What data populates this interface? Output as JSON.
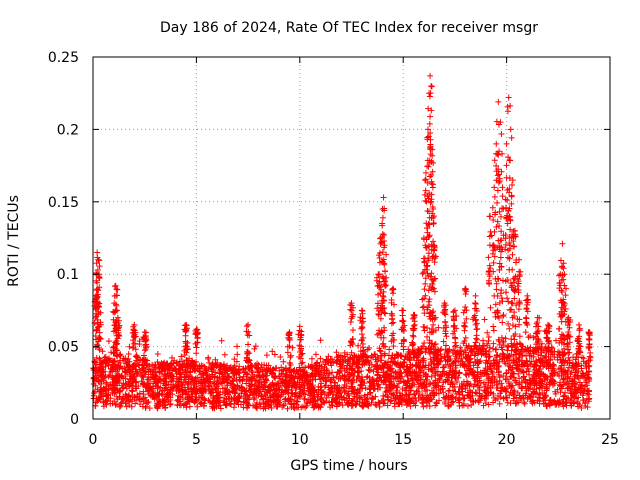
{
  "colors": {
    "series": "#ff0000",
    "grid": "#a0a0a0",
    "axis": "#000000",
    "background": "#ffffff"
  },
  "chart_data": {
    "type": "scatter",
    "title": "Day 186 of 2024, Rate Of TEC Index for receiver msgr",
    "xlabel": "GPS time / hours",
    "ylabel": "ROTI / TECUs",
    "xlim": [
      0,
      25
    ],
    "ylim": [
      0,
      0.25
    ],
    "grid": true,
    "marker": "+",
    "xticks": [
      0,
      5,
      10,
      15,
      20,
      25
    ],
    "yticks": [
      0,
      0.05,
      0.1,
      0.15,
      0.2,
      0.25
    ],
    "xtick_labels": [
      "0",
      "5",
      "10",
      "15",
      "20",
      "25"
    ],
    "ytick_labels": [
      "0",
      "0.05",
      "0.1",
      "0.15",
      "0.2",
      "0.25"
    ],
    "x_data_range": [
      0,
      24
    ],
    "series": [
      {
        "name": "ROTI",
        "baseline_band_points": [
          {
            "x": 0.0,
            "y": [
              0.008,
              0.04
            ]
          },
          {
            "x": 1.0,
            "y": [
              0.008,
              0.045
            ]
          },
          {
            "x": 2.0,
            "y": [
              0.008,
              0.045
            ]
          },
          {
            "x": 3.0,
            "y": [
              0.007,
              0.038
            ]
          },
          {
            "x": 4.0,
            "y": [
              0.008,
              0.04
            ]
          },
          {
            "x": 5.0,
            "y": [
              0.008,
              0.042
            ]
          },
          {
            "x": 6.0,
            "y": [
              0.007,
              0.038
            ]
          },
          {
            "x": 7.0,
            "y": [
              0.008,
              0.036
            ]
          },
          {
            "x": 8.0,
            "y": [
              0.007,
              0.038
            ]
          },
          {
            "x": 9.0,
            "y": [
              0.007,
              0.036
            ]
          },
          {
            "x": 10.0,
            "y": [
              0.007,
              0.035
            ]
          },
          {
            "x": 11.0,
            "y": [
              0.008,
              0.04
            ]
          },
          {
            "x": 12.0,
            "y": [
              0.008,
              0.045
            ]
          },
          {
            "x": 13.0,
            "y": [
              0.008,
              0.045
            ]
          },
          {
            "x": 14.0,
            "y": [
              0.008,
              0.045
            ]
          },
          {
            "x": 15.0,
            "y": [
              0.008,
              0.045
            ]
          },
          {
            "x": 16.0,
            "y": [
              0.008,
              0.05
            ]
          },
          {
            "x": 17.0,
            "y": [
              0.008,
              0.048
            ]
          },
          {
            "x": 18.0,
            "y": [
              0.008,
              0.05
            ]
          },
          {
            "x": 19.0,
            "y": [
              0.009,
              0.052
            ]
          },
          {
            "x": 20.0,
            "y": [
              0.009,
              0.055
            ]
          },
          {
            "x": 21.0,
            "y": [
              0.009,
              0.05
            ]
          },
          {
            "x": 22.0,
            "y": [
              0.008,
              0.05
            ]
          },
          {
            "x": 23.0,
            "y": [
              0.008,
              0.048
            ]
          },
          {
            "x": 24.0,
            "y": [
              0.006,
              0.04
            ]
          }
        ],
        "peak_points": [
          {
            "x": 0.15,
            "y": 0.085
          },
          {
            "x": 0.2,
            "y": 0.115
          },
          {
            "x": 0.25,
            "y": 0.11
          },
          {
            "x": 0.3,
            "y": 0.1
          },
          {
            "x": 1.05,
            "y": 0.085
          },
          {
            "x": 1.1,
            "y": 0.092
          },
          {
            "x": 1.2,
            "y": 0.07
          },
          {
            "x": 2.0,
            "y": 0.065
          },
          {
            "x": 2.5,
            "y": 0.06
          },
          {
            "x": 4.5,
            "y": 0.065
          },
          {
            "x": 5.0,
            "y": 0.062
          },
          {
            "x": 7.5,
            "y": 0.065
          },
          {
            "x": 9.5,
            "y": 0.06
          },
          {
            "x": 10.0,
            "y": 0.064
          },
          {
            "x": 12.5,
            "y": 0.08
          },
          {
            "x": 13.0,
            "y": 0.075
          },
          {
            "x": 13.8,
            "y": 0.1
          },
          {
            "x": 13.9,
            "y": 0.125
          },
          {
            "x": 14.0,
            "y": 0.145
          },
          {
            "x": 14.05,
            "y": 0.153
          },
          {
            "x": 14.1,
            "y": 0.12
          },
          {
            "x": 14.5,
            "y": 0.09
          },
          {
            "x": 15.0,
            "y": 0.075
          },
          {
            "x": 15.5,
            "y": 0.072
          },
          {
            "x": 16.0,
            "y": 0.125
          },
          {
            "x": 16.1,
            "y": 0.17
          },
          {
            "x": 16.2,
            "y": 0.2
          },
          {
            "x": 16.25,
            "y": 0.225
          },
          {
            "x": 16.3,
            "y": 0.237
          },
          {
            "x": 16.35,
            "y": 0.23
          },
          {
            "x": 16.4,
            "y": 0.186
          },
          {
            "x": 16.45,
            "y": 0.145
          },
          {
            "x": 16.5,
            "y": 0.12
          },
          {
            "x": 17.0,
            "y": 0.08
          },
          {
            "x": 17.5,
            "y": 0.075
          },
          {
            "x": 18.0,
            "y": 0.09
          },
          {
            "x": 18.5,
            "y": 0.085
          },
          {
            "x": 19.2,
            "y": 0.14
          },
          {
            "x": 19.4,
            "y": 0.16
          },
          {
            "x": 19.5,
            "y": 0.19
          },
          {
            "x": 19.6,
            "y": 0.219
          },
          {
            "x": 19.7,
            "y": 0.205
          },
          {
            "x": 19.8,
            "y": 0.16
          },
          {
            "x": 20.0,
            "y": 0.19
          },
          {
            "x": 20.1,
            "y": 0.222
          },
          {
            "x": 20.2,
            "y": 0.2
          },
          {
            "x": 20.3,
            "y": 0.165
          },
          {
            "x": 20.4,
            "y": 0.13
          },
          {
            "x": 20.6,
            "y": 0.11
          },
          {
            "x": 21.0,
            "y": 0.085
          },
          {
            "x": 21.5,
            "y": 0.07
          },
          {
            "x": 22.0,
            "y": 0.065
          },
          {
            "x": 22.6,
            "y": 0.1
          },
          {
            "x": 22.7,
            "y": 0.121
          },
          {
            "x": 22.8,
            "y": 0.1
          },
          {
            "x": 23.0,
            "y": 0.07
          },
          {
            "x": 23.5,
            "y": 0.065
          },
          {
            "x": 24.0,
            "y": 0.06
          }
        ]
      }
    ]
  }
}
